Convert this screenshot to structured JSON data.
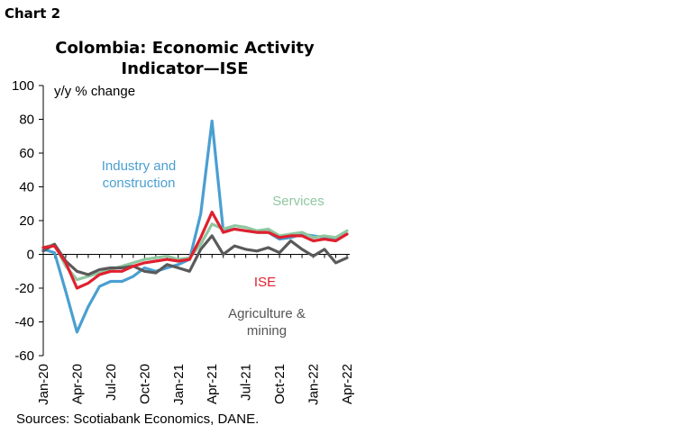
{
  "header": {
    "chart_label": "Chart 2"
  },
  "chart_data": {
    "type": "line",
    "title_line1": "Colombia: Economic Activity",
    "title_line2": "Indicator—ISE",
    "ylabel": "y/y % change",
    "source": "Sources: Scotiabank Economics, DANE.",
    "ylim": [
      -60,
      100
    ],
    "yticks": [
      100,
      80,
      60,
      40,
      20,
      0,
      -20,
      -40,
      -60
    ],
    "xtick_labels": [
      "Jan-20",
      "Apr-20",
      "Jul-20",
      "Oct-20",
      "Jan-21",
      "Apr-21",
      "Jul-21",
      "Oct-21",
      "Jan-22",
      "Apr-22"
    ],
    "x": [
      "Jan-20",
      "Feb-20",
      "Mar-20",
      "Apr-20",
      "May-20",
      "Jun-20",
      "Jul-20",
      "Aug-20",
      "Sep-20",
      "Oct-20",
      "Nov-20",
      "Dec-20",
      "Jan-21",
      "Feb-21",
      "Mar-21",
      "Apr-21",
      "May-21",
      "Jun-21",
      "Jul-21",
      "Aug-21",
      "Sep-21",
      "Oct-21",
      "Nov-21",
      "Dec-21",
      "Jan-22",
      "Feb-22",
      "Mar-22",
      "Apr-22"
    ],
    "annotations": {
      "industry": [
        "Industry and",
        "construction"
      ],
      "services": "Services",
      "ise": "ISE",
      "agri": [
        "Agriculture &",
        "mining"
      ]
    },
    "series": [
      {
        "key": "industry",
        "color": "#4a9fd1",
        "values": [
          3,
          1,
          -22,
          -46,
          -31,
          -19,
          -16,
          -16,
          -13,
          -8,
          -10,
          -8,
          -6,
          -3,
          24,
          79,
          14,
          15,
          14,
          13,
          13,
          9,
          10,
          12,
          11,
          10,
          9,
          12
        ]
      },
      {
        "key": "services",
        "color": "#8fc7a0",
        "values": [
          4,
          6,
          -7,
          -15,
          -13,
          -11,
          -9,
          -7,
          -5,
          -3,
          -2,
          -1,
          -3,
          -2,
          6,
          18,
          15,
          17,
          16,
          14,
          15,
          11,
          12,
          13,
          10,
          11,
          10,
          14
        ]
      },
      {
        "key": "agri",
        "color": "#5a5a5a",
        "values": [
          2,
          6,
          -4,
          -10,
          -12,
          -9,
          -8,
          -8,
          -7,
          -10,
          -11,
          -6,
          -8,
          -10,
          3,
          11,
          0,
          5,
          3,
          2,
          4,
          1,
          8,
          3,
          -1,
          3,
          -5,
          -2
        ]
      },
      {
        "key": "ise",
        "color": "#e0202e",
        "values": [
          4,
          5,
          -5,
          -20,
          -17,
          -12,
          -10,
          -10,
          -7,
          -5,
          -4,
          -3,
          -4,
          -3,
          10,
          25,
          13,
          15,
          14,
          13,
          13,
          10,
          11,
          11,
          8,
          9,
          8,
          12
        ]
      }
    ]
  }
}
